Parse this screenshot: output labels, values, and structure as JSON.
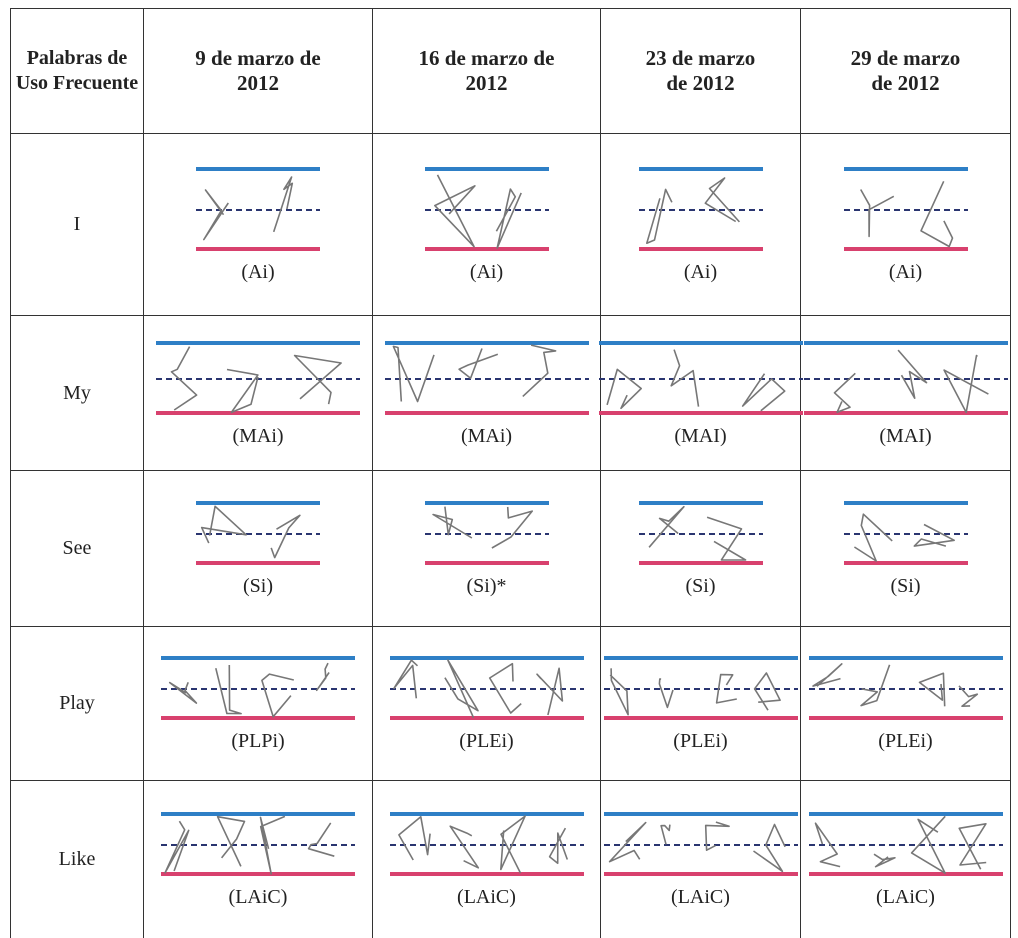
{
  "table": {
    "header": [
      "Palabras de Uso Frecuente",
      "9 de marzo de 2012",
      "16 de marzo de 2012",
      "23 de marzo de 2012",
      "29 de marzo de 2012"
    ],
    "rows": [
      {
        "word": "I",
        "cells": [
          "(Ai)",
          "(Ai)",
          "(Ai)",
          "(Ai)"
        ]
      },
      {
        "word": "My",
        "cells": [
          "(MAi)",
          "(MAi)",
          "(MAI)",
          "(MAI)"
        ]
      },
      {
        "word": "See",
        "cells": [
          "(Si)",
          "(Si)*",
          "(Si)",
          "(Si)"
        ]
      },
      {
        "word": "Play",
        "cells": [
          "(PLPi)",
          "(PLEi)",
          "(PLEi)",
          "(PLEi)"
        ]
      },
      {
        "word": "Like",
        "cells": [
          "(LAiC)",
          "(LAiC)",
          "(LAiC)",
          "(LAiC)"
        ]
      }
    ]
  }
}
